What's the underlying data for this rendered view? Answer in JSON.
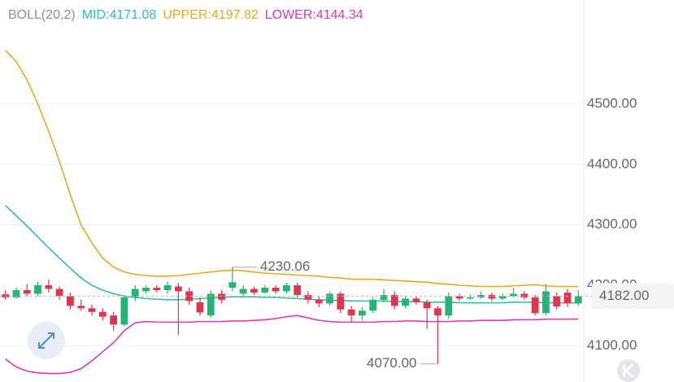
{
  "chart_data": {
    "type": "candlestick",
    "indicator": "BOLL(20,2)",
    "up_color": "#22b573",
    "down_color": "#e0354f",
    "indicator_color": "#8a8f99",
    "open": [
      4185,
      4180,
      4192,
      4186,
      4200,
      4194,
      4182,
      4166,
      4162,
      4156,
      4150,
      4135,
      4180,
      4190,
      4196,
      4192,
      4198,
      4190,
      4172,
      4150,
      4186,
      4196,
      4186,
      4194,
      4188,
      4196,
      4190,
      4200,
      4184,
      4176,
      4170,
      4186,
      4160,
      4150,
      4158,
      4176,
      4184,
      4166,
      4178,
      4172,
      4162,
      4150,
      4182,
      4178,
      4180,
      4184,
      4178,
      4182,
      4186,
      4180,
      4154,
      4182,
      4188,
      4170
    ],
    "high": [
      4192,
      4196,
      4202,
      4206,
      4210,
      4198,
      4188,
      4176,
      4168,
      4162,
      4156,
      4184,
      4200,
      4200,
      4200,
      4206,
      4204,
      4196,
      4180,
      4192,
      4192,
      4230.06,
      4200,
      4198,
      4200,
      4200,
      4204,
      4204,
      4190,
      4182,
      4190,
      4190,
      4166,
      4164,
      4180,
      4194,
      4190,
      4182,
      4182,
      4176,
      4166,
      4188,
      4186,
      4184,
      4190,
      4188,
      4186,
      4196,
      4190,
      4184,
      4202,
      4188,
      4194,
      4192
    ],
    "low": [
      4176,
      4178,
      4182,
      4182,
      4188,
      4176,
      4160,
      4158,
      4150,
      4142,
      4125,
      4132,
      4174,
      4186,
      4188,
      4186,
      4118,
      4168,
      4150,
      4146,
      4170,
      4190,
      4182,
      4184,
      4186,
      4186,
      4186,
      4180,
      4170,
      4164,
      4166,
      4154,
      4140,
      4142,
      4154,
      4172,
      4160,
      4162,
      4168,
      4128,
      4070,
      4144,
      4174,
      4176,
      4178,
      4174,
      4176,
      4180,
      4176,
      4150,
      4150,
      4160,
      4164,
      4166
    ],
    "close": [
      4180,
      4192,
      4186,
      4200,
      4194,
      4182,
      4166,
      4162,
      4156,
      4148,
      4135,
      4180,
      4194,
      4196,
      4192,
      4200,
      4190,
      4174,
      4155,
      4186,
      4176,
      4205,
      4194,
      4188,
      4196,
      4190,
      4200,
      4184,
      4176,
      4170,
      4186,
      4160,
      4150,
      4158,
      4176,
      4184,
      4166,
      4178,
      4172,
      4162,
      4150,
      4182,
      4178,
      4180,
      4184,
      4178,
      4182,
      4186,
      4180,
      4154,
      4190,
      4165,
      4170,
      4182
    ],
    "series": [
      {
        "name": "MID:4171.08",
        "color": "#35c0a5",
        "values": [
          4332,
          4315,
          4298,
          4280,
          4262,
          4245,
          4228,
          4212,
          4200,
          4192,
          4186,
          4182,
          4180,
          4178,
          4177,
          4176,
          4176,
          4177,
          4178,
          4179,
          4180,
          4181,
          4181,
          4181,
          4180,
          4180,
          4179,
          4178,
          4177,
          4176,
          4175,
          4175,
          4174,
          4174,
          4174,
          4174,
          4173,
          4173,
          4173,
          4172,
          4172,
          4172,
          4171,
          4171,
          4171,
          4171,
          4171,
          4172,
          4172,
          4172,
          4171,
          4171,
          4171,
          4171.08
        ]
      },
      {
        "name": "UPPER:4197.82",
        "color": "#e6aa1e",
        "values": [
          4589,
          4570,
          4540,
          4500,
          4455,
          4405,
          4350,
          4300,
          4270,
          4245,
          4230,
          4222,
          4218,
          4216,
          4215,
          4215,
          4216,
          4218,
          4220,
          4222,
          4224,
          4225,
          4224,
          4222,
          4220,
          4219,
          4218,
          4217,
          4216,
          4215,
          4213,
          4212,
          4210,
          4210,
          4210,
          4209,
          4208,
          4207,
          4206,
          4205,
          4203,
          4202,
          4200,
          4199,
          4198,
          4198,
          4198,
          4199,
          4200,
          4201,
          4199,
          4198,
          4198,
          4197.82
        ]
      },
      {
        "name": "LOWER:4144.34",
        "color": "#d83cae",
        "values": [
          4078,
          4065,
          4058,
          4055,
          4054,
          4054,
          4056,
          4062,
          4075,
          4090,
          4105,
          4125,
          4138,
          4140,
          4139,
          4139,
          4139,
          4139,
          4140,
          4140,
          4140,
          4141,
          4141,
          4142,
          4143,
          4145,
          4148,
          4150,
          4146,
          4142,
          4140,
          4139,
          4139,
          4139,
          4139,
          4140,
          4140,
          4141,
          4141,
          4140,
          4140,
          4140,
          4141,
          4141,
          4142,
          4142,
          4142,
          4143,
          4143,
          4143,
          4144,
          4144,
          4144,
          4144.34
        ]
      }
    ],
    "ylim": [
      4040,
      4672
    ],
    "yticks": [
      {
        "value": 4100,
        "label": "4100.00"
      },
      {
        "value": 4200,
        "label": "4200.00"
      },
      {
        "value": 4300,
        "label": "4300.00"
      },
      {
        "value": 4400,
        "label": "4400.00"
      },
      {
        "value": 4500,
        "label": "4500.00"
      }
    ],
    "grid": true,
    "annotations": [
      {
        "value": 4230.06,
        "label": "4230.06"
      },
      {
        "value": 4070,
        "label": "4070.00"
      }
    ],
    "last_price": {
      "value": 4182,
      "label": "4182.00"
    }
  }
}
